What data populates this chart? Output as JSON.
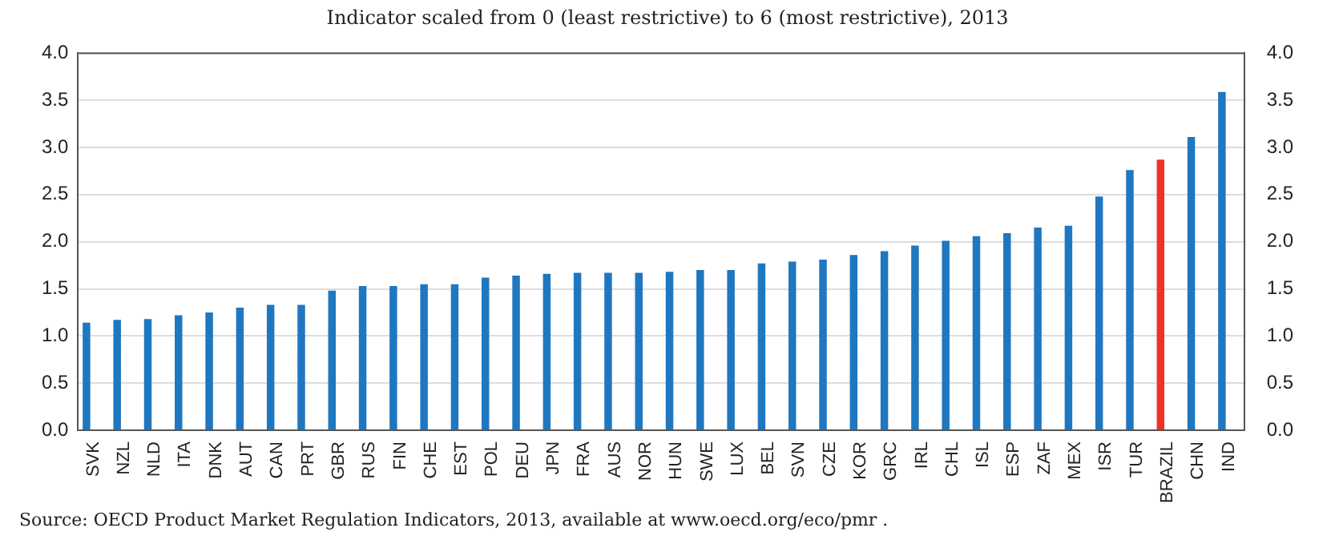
{
  "chart_data": {
    "type": "bar",
    "title": "Indicator scaled from 0 (least restrictive) to 6 (most restrictive), 2013",
    "categories": [
      "SVK",
      "NZL",
      "NLD",
      "ITA",
      "DNK",
      "AUT",
      "CAN",
      "PRT",
      "GBR",
      "RUS",
      "FIN",
      "CHE",
      "EST",
      "POL",
      "DEU",
      "JPN",
      "FRA",
      "AUS",
      "NOR",
      "HUN",
      "SWE",
      "LUX",
      "BEL",
      "SVN",
      "CZE",
      "KOR",
      "GRC",
      "IRL",
      "CHL",
      "ISL",
      "ESP",
      "ZAF",
      "MEX",
      "ISR",
      "TUR",
      "BRAZIL",
      "CHN",
      "IND"
    ],
    "values": [
      1.14,
      1.17,
      1.18,
      1.22,
      1.25,
      1.3,
      1.33,
      1.33,
      1.48,
      1.53,
      1.53,
      1.55,
      1.55,
      1.62,
      1.64,
      1.66,
      1.67,
      1.67,
      1.67,
      1.68,
      1.7,
      1.7,
      1.77,
      1.79,
      1.81,
      1.86,
      1.9,
      1.96,
      2.01,
      2.06,
      2.09,
      2.15,
      2.17,
      2.48,
      2.76,
      2.87,
      3.11,
      3.59
    ],
    "colors": [
      "#1f77c0",
      "#1f77c0",
      "#1f77c0",
      "#1f77c0",
      "#1f77c0",
      "#1f77c0",
      "#1f77c0",
      "#1f77c0",
      "#1f77c0",
      "#1f77c0",
      "#1f77c0",
      "#1f77c0",
      "#1f77c0",
      "#1f77c0",
      "#1f77c0",
      "#1f77c0",
      "#1f77c0",
      "#1f77c0",
      "#1f77c0",
      "#1f77c0",
      "#1f77c0",
      "#1f77c0",
      "#1f77c0",
      "#1f77c0",
      "#1f77c0",
      "#1f77c0",
      "#1f77c0",
      "#1f77c0",
      "#1f77c0",
      "#1f77c0",
      "#1f77c0",
      "#1f77c0",
      "#1f77c0",
      "#1f77c0",
      "#1f77c0",
      "#ee3324",
      "#1f77c0",
      "#1f77c0"
    ],
    "ylim": [
      0,
      4
    ],
    "yticks": [
      {
        "value": 0,
        "label": "0.0"
      },
      {
        "value": 0.5,
        "label": "0.5"
      },
      {
        "value": 1,
        "label": "1.0"
      },
      {
        "value": 1.5,
        "label": "1.5"
      },
      {
        "value": 2,
        "label": "2.0"
      },
      {
        "value": 2.5,
        "label": "2.5"
      },
      {
        "value": 3,
        "label": "3.0"
      },
      {
        "value": 3.5,
        "label": "3.5"
      },
      {
        "value": 4,
        "label": "4.0"
      }
    ],
    "y2lim": [
      0,
      4
    ],
    "y2ticks": [
      {
        "value": 0,
        "label": "0.0"
      },
      {
        "value": 0.5,
        "label": "0.5"
      },
      {
        "value": 1,
        "label": "1.0"
      },
      {
        "value": 1.5,
        "label": "1.5"
      },
      {
        "value": 2,
        "label": "2.0"
      },
      {
        "value": 2.5,
        "label": "2.5"
      },
      {
        "value": 3,
        "label": "3.0"
      },
      {
        "value": 3.5,
        "label": "3.5"
      },
      {
        "value": 4,
        "label": "4.0"
      }
    ],
    "grid": "y",
    "legend": false,
    "annotations": [
      "Source:  OECD Product Market Regulation Indicators, 2013, available at www.oecd.org/eco/pmr ."
    ]
  }
}
